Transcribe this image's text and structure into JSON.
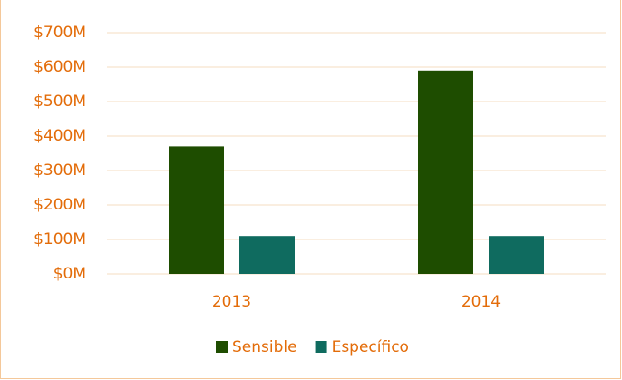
{
  "chart_data": {
    "type": "bar",
    "categories": [
      "2013",
      "2014"
    ],
    "series": [
      {
        "name": "Sensible",
        "color": "#1e4d00",
        "values": [
          370,
          590
        ]
      },
      {
        "name": "Específico",
        "color": "#0f6b5f",
        "values": [
          110,
          110
        ]
      }
    ],
    "ylim": [
      0,
      700
    ],
    "yticks": [
      {
        "value": 0,
        "label": "$0M"
      },
      {
        "value": 100,
        "label": "$100M"
      },
      {
        "value": 200,
        "label": "$200M"
      },
      {
        "value": 300,
        "label": "$300M"
      },
      {
        "value": 400,
        "label": "$400M"
      },
      {
        "value": 500,
        "label": "$500M"
      },
      {
        "value": 600,
        "label": "$600M"
      },
      {
        "value": 700,
        "label": "$700M"
      }
    ],
    "grid": true,
    "legend": "bottom"
  }
}
